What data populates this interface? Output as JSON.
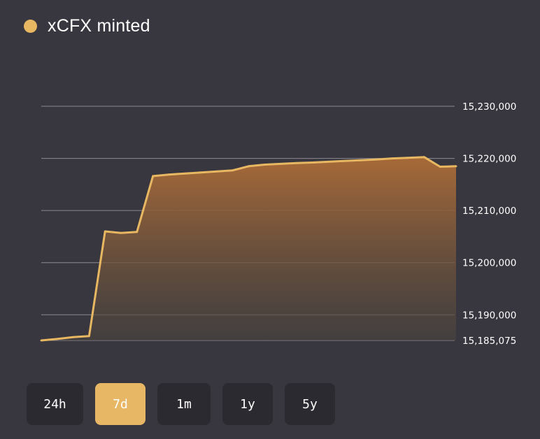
{
  "legend": {
    "label": "xCFX minted",
    "color": "#e8b762"
  },
  "range_selector": {
    "options": [
      "24h",
      "7d",
      "1m",
      "1y",
      "5y"
    ],
    "selected": "7d"
  },
  "colors": {
    "background": "#38373f",
    "line": "#e8b762",
    "fill_top": "#a86a38",
    "grid": "#8a8990",
    "button_bg": "#2b2a31",
    "button_active_bg": "#e7b765"
  },
  "chart_data": {
    "type": "area",
    "series": [
      {
        "name": "xCFX minted",
        "values": [
          15185075,
          15185350,
          15185700,
          15185900,
          15206000,
          15205700,
          15205900,
          15216600,
          15216900,
          15217100,
          15217300,
          15217500,
          15217700,
          15218500,
          15218800,
          15218950,
          15219100,
          15219200,
          15219350,
          15219500,
          15219650,
          15219800,
          15220000,
          15220100,
          15220250,
          15218400,
          15218500
        ]
      }
    ],
    "ylim": [
      15185075,
      15230000
    ],
    "y_ticks": [
      15185075,
      15190000,
      15200000,
      15210000,
      15220000,
      15230000
    ],
    "y_tick_labels": [
      "15,185,075",
      "15,190,000",
      "15,200,000",
      "15,210,000",
      "15,220,000",
      "15,230,000"
    ],
    "grid": true
  }
}
